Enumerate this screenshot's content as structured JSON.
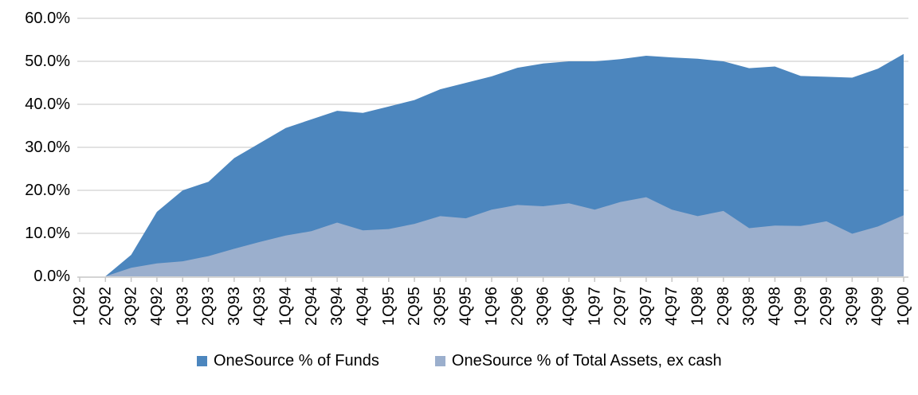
{
  "chart_data": {
    "type": "area",
    "mode": "overlapping",
    "title": "",
    "categories": [
      "1Q92",
      "2Q92",
      "3Q92",
      "4Q92",
      "1Q93",
      "2Q93",
      "3Q93",
      "4Q93",
      "1Q94",
      "2Q94",
      "3Q94",
      "4Q94",
      "1Q95",
      "2Q95",
      "3Q95",
      "4Q95",
      "1Q96",
      "2Q96",
      "3Q96",
      "4Q96",
      "1Q97",
      "2Q97",
      "3Q97",
      "4Q97",
      "1Q98",
      "2Q98",
      "3Q98",
      "4Q98",
      "1Q99",
      "2Q99",
      "3Q99",
      "4Q99",
      "1Q00"
    ],
    "series": [
      {
        "name": "OneSource % of Funds",
        "color": "#4C86BE",
        "values": [
          0,
          0,
          5,
          15,
          20,
          22,
          27.5,
          31,
          34.5,
          36.5,
          38.5,
          38,
          39.5,
          41,
          43.5,
          45,
          46.5,
          48.5,
          49.5,
          50,
          50,
          50.5,
          51.3,
          50.9,
          50.6,
          50,
          48.4,
          48.8,
          46.6,
          46.4,
          46.2,
          48.3,
          51.7
        ]
      },
      {
        "name": "OneSource % of Total Assets, ex cash",
        "color": "#9BAFCD",
        "values": [
          0,
          0,
          2,
          3,
          3.5,
          4.7,
          6.4,
          8,
          9.5,
          10.5,
          12.5,
          10.7,
          11,
          12.2,
          14,
          13.5,
          15.5,
          16.6,
          16.3,
          17,
          15.5,
          17.3,
          18.4,
          15.5,
          14,
          15.2,
          11.2,
          11.8,
          11.7,
          12.8,
          9.9,
          11.6,
          14.2
        ]
      }
    ],
    "y_axis": {
      "min": 0,
      "max": 60,
      "step": 10,
      "tick_labels": [
        "0.0%",
        "10.0%",
        "20.0%",
        "30.0%",
        "40.0%",
        "50.0%",
        "60.0%"
      ]
    },
    "x_axis": {
      "label_rotation_degrees": -90
    },
    "grid": true,
    "gridline_color": "#D9D9D9",
    "axis_line_color": "#C6C6C6",
    "text_color": "#000000",
    "legend_position": "bottom"
  }
}
